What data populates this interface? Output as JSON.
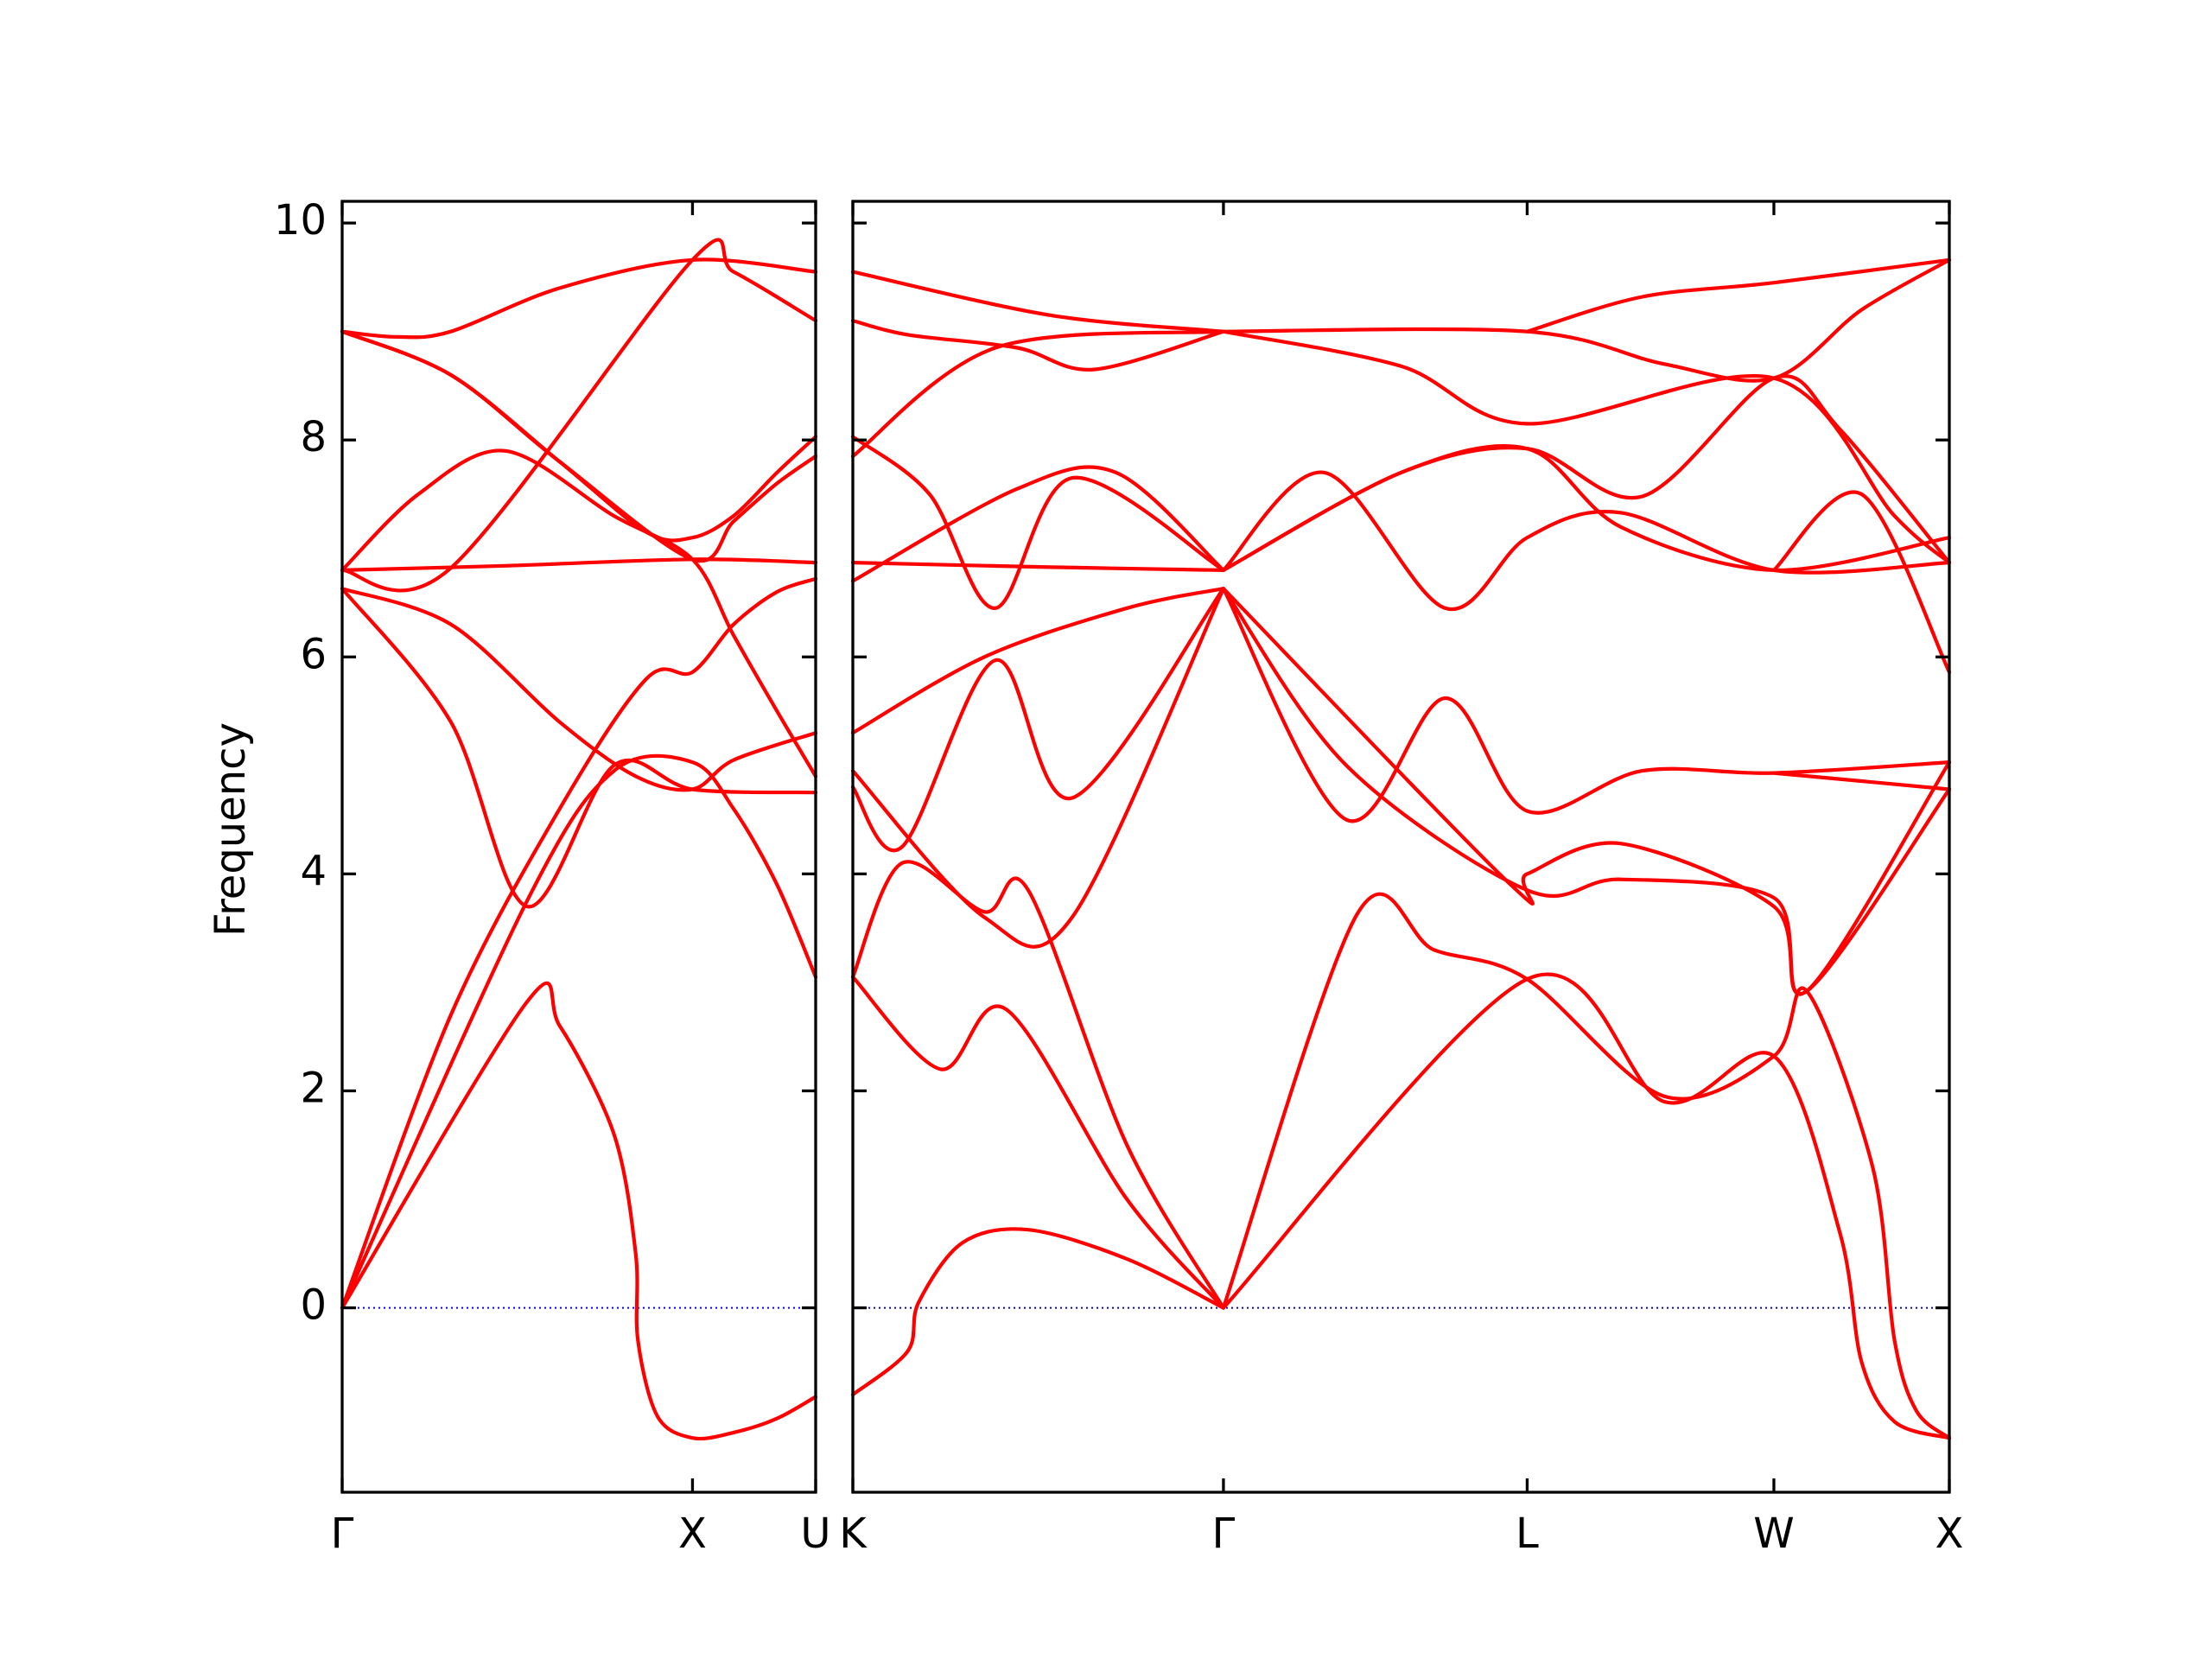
{
  "chart_data": {
    "type": "line",
    "title": "",
    "ylabel": "Frequency",
    "ylim": [
      -1.7,
      10.2
    ],
    "yticks": [
      "0",
      "2",
      "4",
      "6",
      "8",
      "10"
    ],
    "yticks_values": [
      0,
      2,
      4,
      6,
      8,
      10
    ],
    "grid": false,
    "line_color": "#ff0000",
    "zero_line_color": "#0000ff",
    "zero_line_y": 0,
    "x_unit": "path distance along q-path (Γ–X–U and K–Γ–L–W–X segments)",
    "panels": [
      {
        "name": "left",
        "xlim": [
          0,
          0.4355
        ],
        "xticks": [
          {
            "x": 0,
            "label": "Γ"
          },
          {
            "x": 0.3222,
            "label": "X"
          },
          {
            "x": 0.4355,
            "label": "U"
          }
        ],
        "bands": [
          [
            [
              0,
              0
            ],
            [
              0.17,
              2.82
            ],
            [
              0.2,
              2.6
            ],
            [
              0.25,
              1.6
            ],
            [
              0.27,
              0.5
            ],
            [
              0.272,
              -0.3
            ],
            [
              0.29,
              -1.0
            ],
            [
              0.3222,
              -1.2
            ],
            [
              0.36,
              -1.15
            ],
            [
              0.4,
              -1.02
            ],
            [
              0.4355,
              -0.82
            ]
          ],
          [
            [
              0,
              0
            ],
            [
              0.17,
              3.75
            ],
            [
              0.25,
              4.95
            ],
            [
              0.3222,
              5.03
            ],
            [
              0.36,
              4.6
            ],
            [
              0.4,
              3.9
            ],
            [
              0.4355,
              3.05
            ]
          ],
          [
            [
              0,
              0
            ],
            [
              0.1,
              2.7
            ],
            [
              0.2,
              4.6
            ],
            [
              0.28,
              5.8
            ],
            [
              0.3222,
              5.86
            ],
            [
              0.36,
              6.3
            ],
            [
              0.4,
              6.6
            ],
            [
              0.4355,
              6.72
            ]
          ],
          [
            [
              0,
              6.63
            ],
            [
              0.1,
              5.4
            ],
            [
              0.17,
              3.7
            ],
            [
              0.25,
              5.0
            ],
            [
              0.3222,
              4.78
            ],
            [
              0.4355,
              4.75
            ]
          ],
          [
            [
              0,
              6.63
            ],
            [
              0.1,
              6.3
            ],
            [
              0.2,
              5.4
            ],
            [
              0.27,
              4.9
            ],
            [
              0.3222,
              4.78
            ],
            [
              0.36,
              5.05
            ],
            [
              0.4355,
              5.3
            ]
          ],
          [
            [
              0,
              6.8
            ],
            [
              0.15,
              6.84
            ],
            [
              0.3222,
              6.9
            ],
            [
              0.4355,
              6.87
            ]
          ],
          [
            [
              0,
              6.8
            ],
            [
              0.07,
              7.5
            ],
            [
              0.15,
              7.9
            ],
            [
              0.25,
              7.3
            ],
            [
              0.3222,
              6.9
            ],
            [
              0.36,
              6.2
            ],
            [
              0.4,
              5.5
            ],
            [
              0.4355,
              4.9
            ]
          ],
          [
            [
              0,
              9.0
            ],
            [
              0.1,
              8.6
            ],
            [
              0.2,
              7.8
            ],
            [
              0.28,
              7.15
            ],
            [
              0.3222,
              7.1
            ],
            [
              0.36,
              7.3
            ],
            [
              0.4,
              7.7
            ],
            [
              0.4355,
              8.03
            ]
          ],
          [
            [
              0,
              9.0
            ],
            [
              0.05,
              8.95
            ],
            [
              0.1,
              9.0
            ],
            [
              0.2,
              9.4
            ],
            [
              0.3222,
              9.66
            ],
            [
              0.4355,
              9.55
            ]
          ],
          [
            [
              0,
              9.0
            ],
            [
              0.1,
              8.6
            ],
            [
              0.2,
              7.8
            ],
            [
              0.3222,
              6.9
            ],
            [
              0.36,
              7.25
            ],
            [
              0.4,
              7.6
            ],
            [
              0.4355,
              7.85
            ]
          ],
          [
            [
              0,
              6.8
            ],
            [
              0.1,
              6.82
            ],
            [
              0.3222,
              9.66
            ],
            [
              0.36,
              9.55
            ],
            [
              0.4355,
              9.1
            ]
          ]
        ]
      },
      {
        "name": "right",
        "xlim": [
          0,
          1.0
        ],
        "xticks": [
          {
            "x": 0,
            "label": "K"
          },
          {
            "x": 0.338,
            "label": "Γ"
          },
          {
            "x": 0.615,
            "label": "L"
          },
          {
            "x": 0.84,
            "label": "W"
          },
          {
            "x": 1.0,
            "label": "X"
          }
        ],
        "bands": [
          [
            [
              0,
              -0.8
            ],
            [
              0.05,
              -0.4
            ],
            [
              0.06,
              0.05
            ],
            [
              0.1,
              0.6
            ],
            [
              0.16,
              0.72
            ],
            [
              0.25,
              0.45
            ],
            [
              0.338,
              0
            ]
          ],
          [
            [
              0,
              3.05
            ],
            [
              0.08,
              2.2
            ],
            [
              0.14,
              2.75
            ],
            [
              0.25,
              1.0
            ],
            [
              0.338,
              0
            ]
          ],
          [
            [
              0,
              3.05
            ],
            [
              0.045,
              4.1
            ],
            [
              0.12,
              3.65
            ],
            [
              0.16,
              3.85
            ],
            [
              0.25,
              1.5
            ],
            [
              0.338,
              0
            ]
          ],
          [
            [
              0,
              4.8
            ],
            [
              0.045,
              4.25
            ],
            [
              0.13,
              5.97
            ],
            [
              0.2,
              4.7
            ],
            [
              0.338,
              6.63
            ]
          ],
          [
            [
              0,
              4.95
            ],
            [
              0.12,
              3.6
            ],
            [
              0.2,
              3.6
            ],
            [
              0.338,
              6.63
            ]
          ],
          [
            [
              0,
              5.3
            ],
            [
              0.12,
              6.0
            ],
            [
              0.25,
              6.45
            ],
            [
              0.338,
              6.63
            ]
          ],
          [
            [
              0,
              6.7
            ],
            [
              0.15,
              7.55
            ],
            [
              0.24,
              7.7
            ],
            [
              0.338,
              6.8
            ]
          ],
          [
            [
              0,
              6.87
            ],
            [
              0.17,
              6.83
            ],
            [
              0.338,
              6.8
            ]
          ],
          [
            [
              0,
              7.85
            ],
            [
              0.13,
              8.85
            ],
            [
              0.338,
              9.0
            ]
          ],
          [
            [
              0,
              8.03
            ],
            [
              0.07,
              7.5
            ],
            [
              0.13,
              6.45
            ],
            [
              0.2,
              7.65
            ],
            [
              0.338,
              6.8
            ]
          ],
          [
            [
              0,
              9.1
            ],
            [
              0.05,
              8.97
            ],
            [
              0.15,
              8.85
            ],
            [
              0.22,
              8.65
            ],
            [
              0.338,
              9.0
            ]
          ],
          [
            [
              0,
              9.55
            ],
            [
              0.18,
              9.15
            ],
            [
              0.338,
              9.0
            ]
          ],
          [
            [
              0.338,
              0
            ],
            [
              0.46,
              3.63
            ],
            [
              0.53,
              3.3
            ],
            [
              0.615,
              3.03
            ],
            [
              0.74,
              1.95
            ],
            [
              0.84,
              2.32
            ],
            [
              0.87,
              2.92
            ],
            [
              0.93,
              1.3
            ],
            [
              0.95,
              -0.3
            ],
            [
              0.97,
              -0.95
            ],
            [
              1.0,
              -1.2
            ]
          ],
          [
            [
              0.338,
              0
            ],
            [
              0.615,
              3.03
            ],
            [
              0.74,
              1.9
            ],
            [
              0.84,
              2.32
            ],
            [
              0.9,
              0.7
            ],
            [
              0.92,
              -0.5
            ],
            [
              0.95,
              -1.05
            ],
            [
              1.0,
              -1.2
            ]
          ],
          [
            [
              0.338,
              6.63
            ],
            [
              0.45,
              4.5
            ],
            [
              0.54,
              5.62
            ],
            [
              0.615,
              4.58
            ],
            [
              0.72,
              4.95
            ],
            [
              0.84,
              4.93
            ],
            [
              1.0,
              5.03
            ]
          ],
          [
            [
              0.338,
              6.63
            ],
            [
              0.45,
              5.0
            ],
            [
              0.615,
              3.85
            ],
            [
              0.7,
              3.95
            ],
            [
              0.84,
              3.78
            ],
            [
              0.87,
              2.92
            ],
            [
              1.0,
              5.03
            ]
          ],
          [
            [
              0.338,
              6.63
            ],
            [
              0.6,
              3.9
            ],
            [
              0.615,
              4.0
            ],
            [
              0.7,
              4.28
            ],
            [
              0.84,
              3.7
            ],
            [
              0.87,
              2.92
            ],
            [
              1.0,
              4.78
            ]
          ],
          [
            [
              0.338,
              6.8
            ],
            [
              0.43,
              7.7
            ],
            [
              0.54,
              6.45
            ],
            [
              0.615,
              7.1
            ],
            [
              0.7,
              7.33
            ],
            [
              0.84,
              6.8
            ],
            [
              1.0,
              6.87
            ]
          ],
          [
            [
              0.338,
              6.8
            ],
            [
              0.5,
              7.7
            ],
            [
              0.615,
              7.92
            ],
            [
              0.7,
              7.2
            ],
            [
              0.84,
              6.8
            ],
            [
              1.0,
              7.1
            ]
          ],
          [
            [
              0.338,
              6.8
            ],
            [
              0.5,
              7.7
            ],
            [
              0.615,
              7.92
            ],
            [
              0.72,
              7.48
            ],
            [
              0.84,
              8.57
            ],
            [
              0.9,
              8.1
            ],
            [
              1.0,
              6.87
            ]
          ],
          [
            [
              0.338,
              9.0
            ],
            [
              0.5,
              8.68
            ],
            [
              0.615,
              8.15
            ],
            [
              0.84,
              8.57
            ],
            [
              0.95,
              7.3
            ],
            [
              1.0,
              6.87
            ]
          ],
          [
            [
              0.338,
              9.0
            ],
            [
              0.615,
              9.0
            ],
            [
              0.74,
              8.7
            ],
            [
              0.84,
              8.57
            ],
            [
              0.92,
              9.2
            ],
            [
              1.0,
              9.66
            ]
          ],
          [
            [
              0.615,
              9.0
            ],
            [
              0.72,
              9.32
            ],
            [
              0.84,
              9.45
            ],
            [
              1.0,
              9.66
            ]
          ],
          [
            [
              0.84,
              6.8
            ],
            [
              0.92,
              7.5
            ],
            [
              1.0,
              5.86
            ]
          ],
          [
            [
              0.84,
              4.93
            ],
            [
              1.0,
              4.78
            ]
          ]
        ]
      }
    ]
  }
}
